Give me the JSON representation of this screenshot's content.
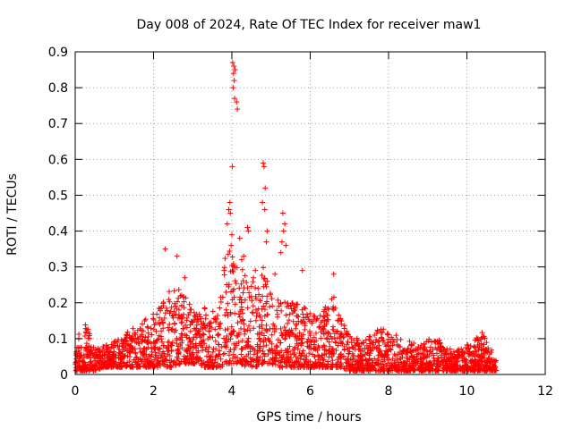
{
  "chart_data": {
    "type": "scatter",
    "title": "Day 008 of 2024, Rate Of TEC Index for receiver maw1",
    "xlabel": "GPS time / hours",
    "ylabel": "ROTI / TECUs",
    "xlim": [
      0,
      12
    ],
    "ylim": [
      0,
      0.9
    ],
    "xticks": [
      "0",
      "2",
      "4",
      "6",
      "8",
      "10",
      "12"
    ],
    "yticks": [
      "0",
      "0.1",
      "0.2",
      "0.3",
      "0.4",
      "0.5",
      "0.6",
      "0.7",
      "0.8",
      "0.9"
    ],
    "grid": true,
    "marker": "+",
    "series_color": "#ff0000",
    "envelope": {
      "x": [
        0,
        0.05,
        0.1,
        0.2,
        0.3,
        0.4,
        0.5,
        0.7,
        0.9,
        1.1,
        1.3,
        1.5,
        1.7,
        1.9,
        2.1,
        2.3,
        2.5,
        2.7,
        2.9,
        3.1,
        3.3,
        3.5,
        3.7,
        3.9,
        4.0,
        4.2,
        4.4,
        4.6,
        4.8,
        5.0,
        5.2,
        5.4,
        5.6,
        5.8,
        6.0,
        6.2,
        6.4,
        6.6,
        6.8,
        7.0,
        7.2,
        7.4,
        7.6,
        7.8,
        8.0,
        8.2,
        8.4,
        8.6,
        8.8,
        9.0,
        9.2,
        9.4,
        9.6,
        9.8,
        10.0,
        10.2,
        10.4,
        10.6,
        10.75
      ],
      "upper": [
        0.08,
        0.14,
        0.12,
        0.1,
        0.17,
        0.09,
        0.07,
        0.08,
        0.09,
        0.1,
        0.12,
        0.13,
        0.15,
        0.16,
        0.18,
        0.22,
        0.25,
        0.24,
        0.2,
        0.17,
        0.2,
        0.18,
        0.22,
        0.4,
        0.35,
        0.3,
        0.28,
        0.26,
        0.3,
        0.24,
        0.22,
        0.2,
        0.2,
        0.19,
        0.18,
        0.16,
        0.2,
        0.22,
        0.15,
        0.12,
        0.1,
        0.1,
        0.12,
        0.13,
        0.12,
        0.11,
        0.1,
        0.09,
        0.08,
        0.1,
        0.11,
        0.08,
        0.07,
        0.07,
        0.09,
        0.1,
        0.12,
        0.08,
        0.04
      ],
      "lower": [
        0.01,
        0.01,
        0.01,
        0.01,
        0.01,
        0.01,
        0.01,
        0.02,
        0.02,
        0.02,
        0.02,
        0.02,
        0.02,
        0.02,
        0.02,
        0.02,
        0.02,
        0.03,
        0.03,
        0.03,
        0.02,
        0.02,
        0.02,
        0.03,
        0.03,
        0.03,
        0.02,
        0.02,
        0.03,
        0.03,
        0.02,
        0.02,
        0.02,
        0.02,
        0.02,
        0.02,
        0.02,
        0.02,
        0.02,
        0.01,
        0.01,
        0.01,
        0.01,
        0.01,
        0.01,
        0.01,
        0.01,
        0.01,
        0.01,
        0.01,
        0.01,
        0.01,
        0.01,
        0.01,
        0.01,
        0.01,
        0.01,
        0.01,
        0.01
      ]
    },
    "outliers": [
      {
        "x": 4.02,
        "y": 0.87
      },
      {
        "x": 4.05,
        "y": 0.86
      },
      {
        "x": 4.08,
        "y": 0.85
      },
      {
        "x": 4.04,
        "y": 0.84
      },
      {
        "x": 4.06,
        "y": 0.82
      },
      {
        "x": 4.03,
        "y": 0.8
      },
      {
        "x": 4.07,
        "y": 0.77
      },
      {
        "x": 4.12,
        "y": 0.76
      },
      {
        "x": 4.14,
        "y": 0.74
      },
      {
        "x": 4.01,
        "y": 0.58
      },
      {
        "x": 4.8,
        "y": 0.59
      },
      {
        "x": 4.82,
        "y": 0.58
      },
      {
        "x": 4.85,
        "y": 0.52
      },
      {
        "x": 4.78,
        "y": 0.48
      },
      {
        "x": 4.84,
        "y": 0.46
      },
      {
        "x": 3.95,
        "y": 0.48
      },
      {
        "x": 3.92,
        "y": 0.46
      },
      {
        "x": 3.96,
        "y": 0.45
      },
      {
        "x": 3.88,
        "y": 0.42
      },
      {
        "x": 4.2,
        "y": 0.38
      },
      {
        "x": 4.4,
        "y": 0.41
      },
      {
        "x": 4.42,
        "y": 0.4
      },
      {
        "x": 4.9,
        "y": 0.4
      },
      {
        "x": 4.88,
        "y": 0.37
      },
      {
        "x": 5.3,
        "y": 0.45
      },
      {
        "x": 5.35,
        "y": 0.42
      },
      {
        "x": 5.32,
        "y": 0.4
      },
      {
        "x": 5.28,
        "y": 0.37
      },
      {
        "x": 5.38,
        "y": 0.36
      },
      {
        "x": 5.25,
        "y": 0.34
      },
      {
        "x": 2.3,
        "y": 0.35
      },
      {
        "x": 2.6,
        "y": 0.33
      },
      {
        "x": 4.3,
        "y": 0.33
      },
      {
        "x": 4.25,
        "y": 0.32
      },
      {
        "x": 4.0,
        "y": 0.39
      },
      {
        "x": 3.98,
        "y": 0.36
      },
      {
        "x": 5.8,
        "y": 0.29
      },
      {
        "x": 6.6,
        "y": 0.28
      },
      {
        "x": 4.6,
        "y": 0.29
      },
      {
        "x": 4.55,
        "y": 0.27
      },
      {
        "x": 2.8,
        "y": 0.27
      },
      {
        "x": 5.1,
        "y": 0.28
      }
    ]
  }
}
